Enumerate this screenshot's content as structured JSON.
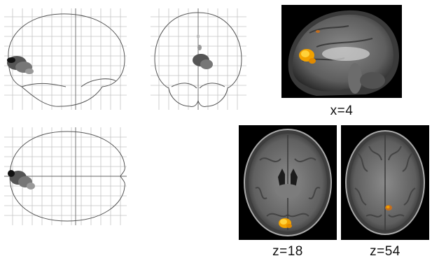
{
  "figure": {
    "glass_brain_views": [
      {
        "name": "sagittal"
      },
      {
        "name": "coronal"
      },
      {
        "name": "axial"
      }
    ],
    "slices": [
      {
        "label": "x=4",
        "view": "sagittal"
      },
      {
        "label": "z=18",
        "view": "axial"
      },
      {
        "label": "z=54",
        "view": "axial"
      }
    ],
    "colors": {
      "background": "#ffffff",
      "grid": "#bdbdbd",
      "outline": "#555555",
      "activation_glass": "#333333",
      "activation_hot": "#f2a200",
      "activation_hot_core": "#ffd23a",
      "mri_background": "#000000"
    }
  }
}
